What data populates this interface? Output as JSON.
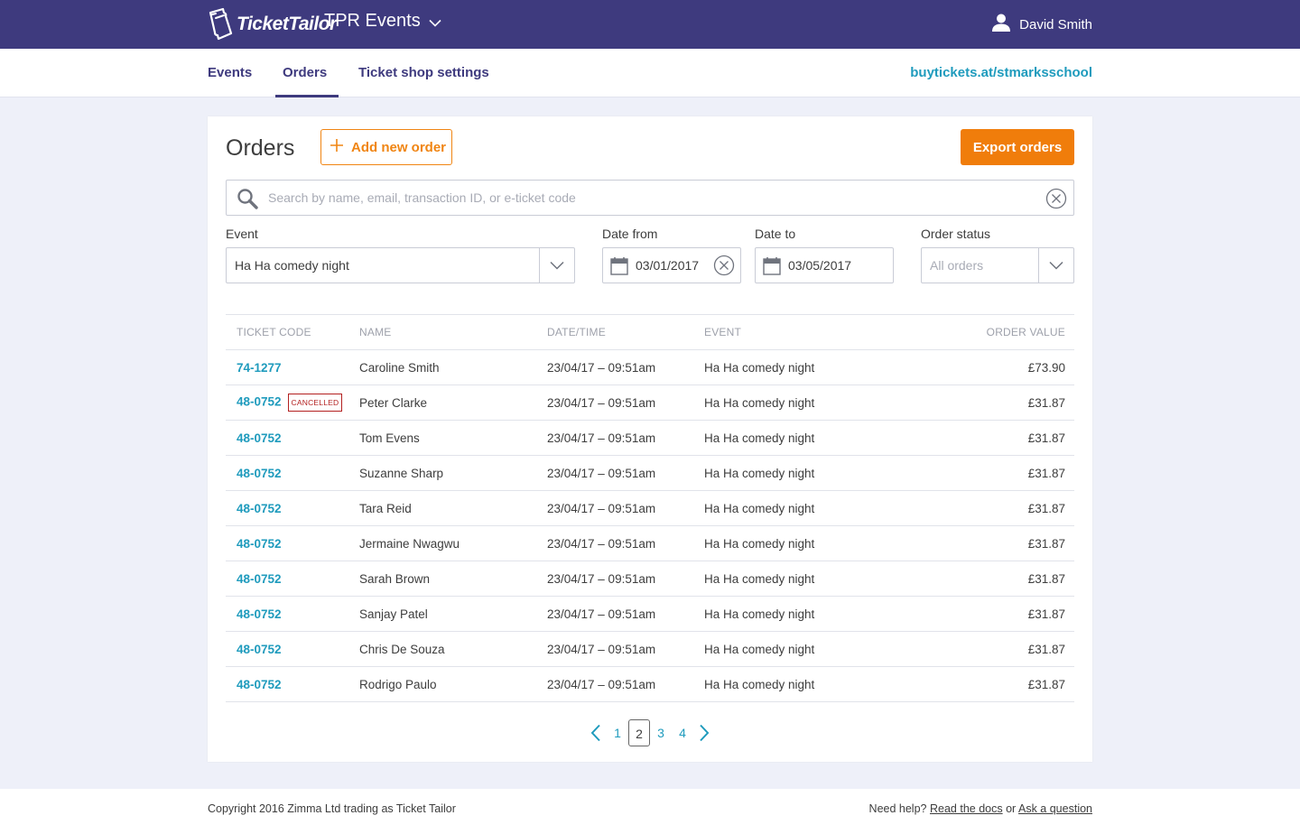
{
  "header": {
    "brand": "TicketTailor",
    "org_name": "TPR Events",
    "user_name": "David Smith"
  },
  "nav": {
    "tabs": [
      {
        "label": "Events",
        "active": false
      },
      {
        "label": "Orders",
        "active": true
      },
      {
        "label": "Ticket shop settings",
        "active": false
      }
    ],
    "shop_url": "buytickets.at/stmarksschool"
  },
  "orders": {
    "title": "Orders",
    "add_label": "Add new order",
    "export_label": "Export orders",
    "search_placeholder": "Search by name, email, transaction ID, or e-ticket code",
    "filters": {
      "event_label": "Event",
      "event_value": "Ha Ha comedy night",
      "date_from_label": "Date from",
      "date_from_value": "03/01/2017",
      "date_to_label": "Date to",
      "date_to_value": "03/05/2017",
      "status_label": "Order status",
      "status_placeholder": "All orders"
    },
    "table": {
      "columns": [
        "TICKET CODE",
        "NAME",
        "DATE/TIME",
        "EVENT",
        "ORDER VALUE"
      ],
      "rows": [
        {
          "code": "74-1277",
          "status": "",
          "name": "Caroline Smith",
          "datetime": "23/04/17 – 09:51am",
          "event": "Ha Ha comedy night",
          "value": "£73.90"
        },
        {
          "code": "48-0752",
          "status": "CANCELLED",
          "name": "Peter Clarke",
          "datetime": "23/04/17 – 09:51am",
          "event": "Ha Ha comedy night",
          "value": "£31.87"
        },
        {
          "code": "48-0752",
          "status": "",
          "name": "Tom Evens",
          "datetime": "23/04/17 – 09:51am",
          "event": "Ha Ha comedy night",
          "value": "£31.87"
        },
        {
          "code": "48-0752",
          "status": "",
          "name": "Suzanne Sharp",
          "datetime": "23/04/17 – 09:51am",
          "event": "Ha Ha comedy night",
          "value": "£31.87"
        },
        {
          "code": "48-0752",
          "status": "",
          "name": "Tara Reid",
          "datetime": "23/04/17 – 09:51am",
          "event": "Ha Ha comedy night",
          "value": "£31.87"
        },
        {
          "code": "48-0752",
          "status": "",
          "name": "Jermaine Nwagwu",
          "datetime": "23/04/17 – 09:51am",
          "event": "Ha Ha comedy night",
          "value": "£31.87"
        },
        {
          "code": "48-0752",
          "status": "",
          "name": "Sarah Brown",
          "datetime": "23/04/17 – 09:51am",
          "event": "Ha Ha comedy night",
          "value": "£31.87"
        },
        {
          "code": "48-0752",
          "status": "",
          "name": "Sanjay Patel",
          "datetime": "23/04/17 – 09:51am",
          "event": "Ha Ha comedy night",
          "value": "£31.87"
        },
        {
          "code": "48-0752",
          "status": "",
          "name": "Chris De Souza",
          "datetime": "23/04/17 – 09:51am",
          "event": "Ha Ha comedy night",
          "value": "£31.87"
        },
        {
          "code": "48-0752",
          "status": "",
          "name": "Rodrigo Paulo",
          "datetime": "23/04/17 – 09:51am",
          "event": "Ha Ha comedy night",
          "value": "£31.87"
        }
      ]
    },
    "pagination": {
      "pages": [
        "1",
        "2",
        "3",
        "4"
      ],
      "current": "2"
    }
  },
  "footer": {
    "copyright": "Copyright 2016 Zimma Ltd trading as Ticket Tailor",
    "help_text": "Need help?",
    "docs_link": "Read the docs",
    "or_text": "or",
    "ask_link": "Ask a question"
  },
  "colors": {
    "brand_purple": "#3e3a7e",
    "accent_orange": "#f07d0b",
    "link_teal": "#1f9bbd",
    "cancelled_red": "#b32020"
  },
  "icons": [
    "ticket-logo-icon",
    "chevron-down-icon",
    "user-icon",
    "plus-icon",
    "search-icon",
    "clear-icon",
    "calendar-icon",
    "chevron-left-icon",
    "chevron-right-icon"
  ]
}
